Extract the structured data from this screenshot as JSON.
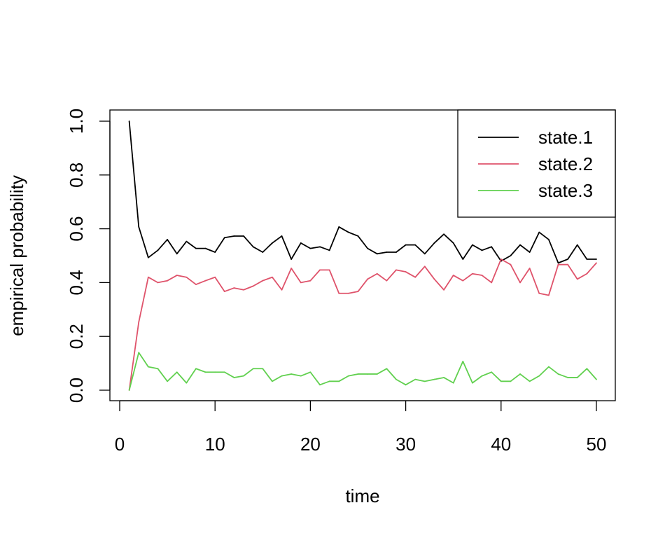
{
  "chart_data": {
    "type": "line",
    "title": "",
    "xlabel": "time",
    "ylabel": "empirical probability",
    "xlim": [
      0,
      50
    ],
    "ylim": [
      0,
      1
    ],
    "x_ticks": [
      0,
      10,
      20,
      30,
      40,
      50
    ],
    "y_ticks": [
      0.0,
      0.2,
      0.4,
      0.6,
      0.8,
      1.0
    ],
    "y_tick_labels": [
      "0.0",
      "0.2",
      "0.4",
      "0.6",
      "0.8",
      "1.0"
    ],
    "grid": false,
    "legend_position": "top-right",
    "x": [
      1,
      2,
      3,
      4,
      5,
      6,
      7,
      8,
      9,
      10,
      11,
      12,
      13,
      14,
      15,
      16,
      17,
      18,
      19,
      20,
      21,
      22,
      23,
      24,
      25,
      26,
      27,
      28,
      29,
      30,
      31,
      32,
      33,
      34,
      35,
      36,
      37,
      38,
      39,
      40,
      41,
      42,
      43,
      44,
      45,
      46,
      47,
      48,
      49,
      50
    ],
    "series": [
      {
        "name": "state.1",
        "color": "#000000",
        "values": [
          1.0,
          0.607,
          0.493,
          0.52,
          0.56,
          0.507,
          0.553,
          0.527,
          0.527,
          0.513,
          0.567,
          0.573,
          0.573,
          0.533,
          0.513,
          0.547,
          0.573,
          0.487,
          0.547,
          0.527,
          0.533,
          0.52,
          0.607,
          0.587,
          0.573,
          0.527,
          0.507,
          0.513,
          0.513,
          0.54,
          0.54,
          0.507,
          0.547,
          0.58,
          0.547,
          0.487,
          0.54,
          0.52,
          0.533,
          0.48,
          0.5,
          0.54,
          0.513,
          0.587,
          0.56,
          0.473,
          0.487,
          0.54,
          0.487,
          0.487
        ]
      },
      {
        "name": "state.2",
        "color": "#DF536B",
        "values": [
          0.0,
          0.253,
          0.42,
          0.4,
          0.407,
          0.427,
          0.42,
          0.393,
          0.407,
          0.42,
          0.367,
          0.38,
          0.373,
          0.387,
          0.407,
          0.42,
          0.373,
          0.453,
          0.4,
          0.407,
          0.447,
          0.447,
          0.36,
          0.36,
          0.367,
          0.413,
          0.433,
          0.407,
          0.447,
          0.44,
          0.42,
          0.46,
          0.413,
          0.373,
          0.427,
          0.407,
          0.433,
          0.427,
          0.4,
          0.487,
          0.467,
          0.4,
          0.453,
          0.36,
          0.353,
          0.467,
          0.467,
          0.413,
          0.433,
          0.473
        ]
      },
      {
        "name": "state.3",
        "color": "#61D04F",
        "values": [
          0.0,
          0.14,
          0.087,
          0.08,
          0.033,
          0.067,
          0.027,
          0.08,
          0.067,
          0.067,
          0.067,
          0.047,
          0.053,
          0.08,
          0.08,
          0.033,
          0.053,
          0.06,
          0.053,
          0.067,
          0.02,
          0.033,
          0.033,
          0.053,
          0.06,
          0.06,
          0.06,
          0.08,
          0.04,
          0.02,
          0.04,
          0.033,
          0.04,
          0.047,
          0.027,
          0.107,
          0.027,
          0.053,
          0.067,
          0.033,
          0.033,
          0.06,
          0.033,
          0.053,
          0.087,
          0.06,
          0.047,
          0.047,
          0.08,
          0.04
        ]
      }
    ]
  }
}
